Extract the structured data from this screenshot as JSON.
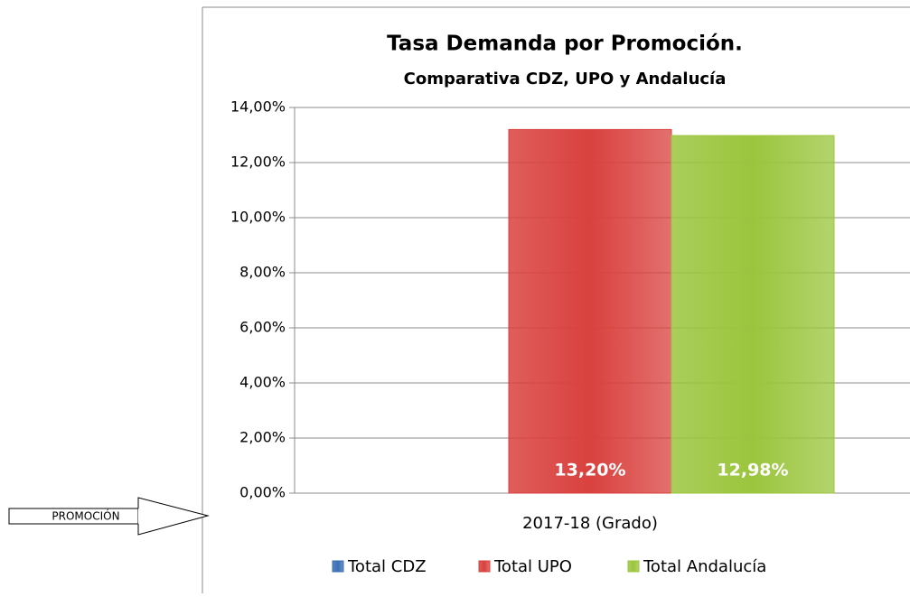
{
  "chart_data": {
    "type": "bar",
    "title": "Tasa Demanda por Promoción.",
    "subtitle": "Comparativa CDZ, UPO y Andalucía",
    "annotation": "PROMOCIÓN",
    "categories": [
      "2017-18 (Grado)"
    ],
    "series": [
      {
        "name": "Total CDZ",
        "color": "#3a6fb5",
        "values": [
          null
        ]
      },
      {
        "name": "Total UPO",
        "color": "#d9413e",
        "values": [
          13.2
        ],
        "value_labels": [
          "13,20%"
        ]
      },
      {
        "name": "Total Andalucía",
        "color": "#9bc53d",
        "values": [
          12.98
        ],
        "value_labels": [
          "12,98%"
        ]
      }
    ],
    "ylim": [
      0,
      14
    ],
    "yticks": [
      {
        "value": 0,
        "label": "0,00%"
      },
      {
        "value": 2,
        "label": "2,00%"
      },
      {
        "value": 4,
        "label": "4,00%"
      },
      {
        "value": 6,
        "label": "6,00%"
      },
      {
        "value": 8,
        "label": "8,00%"
      },
      {
        "value": 10,
        "label": "10,00%"
      },
      {
        "value": 12,
        "label": "12,00%"
      },
      {
        "value": 14,
        "label": "14,00%"
      }
    ],
    "grid": true,
    "legend": "bottom"
  }
}
